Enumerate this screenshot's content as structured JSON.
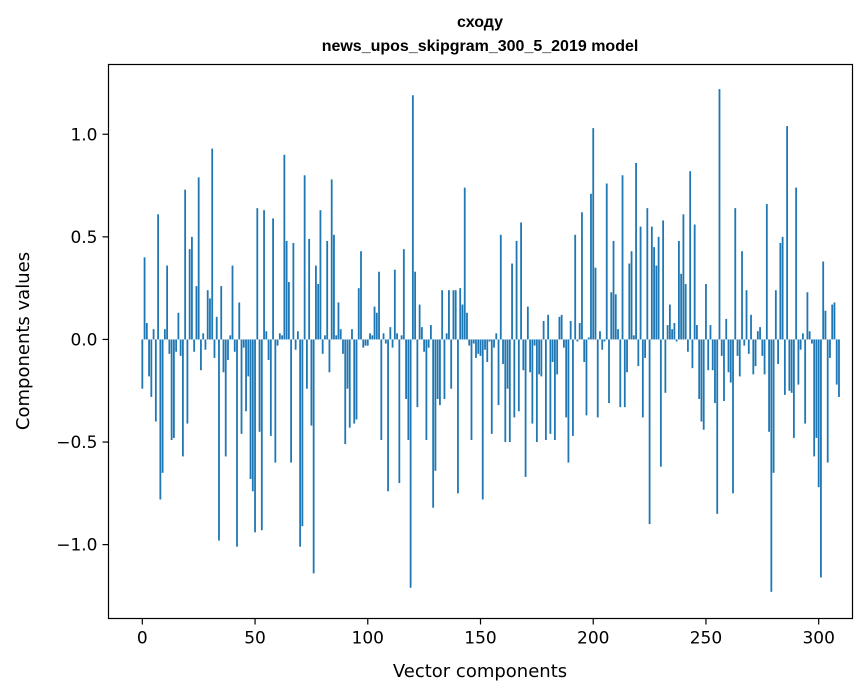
{
  "chart_data": {
    "type": "bar",
    "title": [
      "сходу",
      "news_upos_skipgram_300_5_2019 model"
    ],
    "xlabel": "Vector components",
    "ylabel": "Components values",
    "xlim": [
      -15,
      315
    ],
    "ylim": [
      -1.36,
      1.34
    ],
    "xticks": [
      0,
      50,
      100,
      150,
      200,
      250,
      300
    ],
    "yticks": [
      -1.0,
      -0.5,
      0.0,
      0.5,
      1.0
    ],
    "ytick_labels": [
      "−1.0",
      "−0.5",
      "0.0",
      "0.5",
      "1.0"
    ],
    "grid": false,
    "bar_color": "#1f77b4",
    "values": [
      -0.24,
      0.4,
      0.08,
      -0.18,
      -0.28,
      0.05,
      -0.4,
      0.61,
      -0.78,
      -0.65,
      0.05,
      0.36,
      -0.07,
      -0.49,
      -0.48,
      -0.06,
      0.13,
      -0.08,
      -0.57,
      0.73,
      -0.41,
      0.44,
      0.5,
      -0.06,
      0.26,
      0.79,
      -0.15,
      0.03,
      -0.05,
      0.24,
      0.2,
      0.93,
      -0.09,
      0.11,
      -0.98,
      0.26,
      -0.16,
      -0.57,
      -0.1,
      0.02,
      0.36,
      -0.06,
      -1.01,
      0.18,
      -0.46,
      -0.04,
      -0.35,
      -0.18,
      -0.68,
      -0.74,
      -0.94,
      0.64,
      -0.45,
      -0.93,
      0.63,
      0.04,
      -0.1,
      -0.47,
      0.59,
      -0.6,
      -0.03,
      0.03,
      0.02,
      0.9,
      0.48,
      0.28,
      -0.6,
      0.47,
      -0.05,
      0.04,
      -1.01,
      -0.91,
      0.8,
      -0.24,
      0.49,
      -0.42,
      -1.14,
      0.36,
      0.27,
      0.63,
      -0.07,
      0.02,
      0.48,
      -0.16,
      0.78,
      0.51,
      0.02,
      0.18,
      0.05,
      -0.07,
      -0.51,
      -0.24,
      -0.43,
      0.05,
      -0.41,
      -0.39,
      0.25,
      0.43,
      -0.04,
      -0.03,
      -0.03,
      0.03,
      0.02,
      0.16,
      0.13,
      0.33,
      -0.49,
      0.03,
      -0.02,
      -0.74,
      0.06,
      -0.04,
      0.34,
      0.03,
      -0.7,
      0.02,
      0.44,
      -0.29,
      -0.49,
      -1.21,
      1.19,
      0.33,
      -0.33,
      0.17,
      0.06,
      -0.06,
      -0.49,
      -0.04,
      0.07,
      -0.82,
      -0.64,
      -0.29,
      -0.32,
      0.24,
      -0.29,
      0.03,
      0.24,
      -0.24,
      0.24,
      0.24,
      -0.75,
      0.25,
      0.17,
      0.74,
      0.13,
      -0.03,
      -0.49,
      -0.02,
      -0.09,
      -0.07,
      -0.08,
      -0.78,
      -0.05,
      -0.11,
      -0.01,
      -0.46,
      -0.04,
      0.03,
      -0.32,
      0.51,
      -0.12,
      -0.5,
      -0.24,
      -0.5,
      0.37,
      -0.38,
      0.48,
      -0.35,
      0.57,
      -0.15,
      -0.67,
      0.16,
      -0.16,
      -0.41,
      -0.03,
      -0.5,
      -0.17,
      -0.18,
      0.09,
      -0.49,
      0.12,
      -0.46,
      -0.11,
      -0.49,
      -0.17,
      0.11,
      0.12,
      -0.04,
      -0.38,
      -0.6,
      0.09,
      -0.47,
      0.51,
      -0.01,
      0.08,
      0.62,
      -0.11,
      -0.37,
      0.01,
      0.71,
      1.03,
      0.35,
      -0.38,
      0.04,
      -0.05,
      -0.01,
      0.76,
      -0.31,
      0.23,
      0.48,
      0.22,
      0.05,
      -0.33,
      0.8,
      -0.33,
      -0.16,
      0.37,
      0.43,
      0.02,
      0.86,
      -0.13,
      0.55,
      -0.38,
      -0.09,
      0.64,
      -0.9,
      0.55,
      0.45,
      0.36,
      0.5,
      -0.62,
      0.58,
      -0.26,
      0.07,
      0.17,
      0.05,
      0.08,
      -0.01,
      0.48,
      0.32,
      0.61,
      0.27,
      -0.06,
      0.82,
      -0.14,
      0.56,
      0.07,
      -0.29,
      -0.4,
      -0.44,
      0.27,
      -0.15,
      0.07,
      -0.15,
      -0.31,
      -0.85,
      1.22,
      -0.08,
      -0.3,
      0.1,
      -0.16,
      -0.21,
      -0.75,
      0.64,
      -0.08,
      -0.18,
      0.43,
      -0.03,
      0.24,
      -0.07,
      0.12,
      -0.17,
      -0.13,
      0.04,
      0.06,
      -0.08,
      -0.17,
      0.66,
      -0.45,
      -1.23,
      -0.65,
      0.24,
      -0.12,
      0.47,
      0.5,
      -0.27,
      1.04,
      -0.25,
      -0.26,
      -0.48,
      0.74,
      -0.22,
      -0.05,
      0.03,
      -0.41,
      0.23,
      0.04,
      -0.02,
      -0.57,
      -0.48,
      -0.72,
      -1.16,
      0.38,
      0.14,
      -0.6,
      -0.09,
      0.17,
      0.18,
      -0.22,
      -0.28
    ]
  }
}
